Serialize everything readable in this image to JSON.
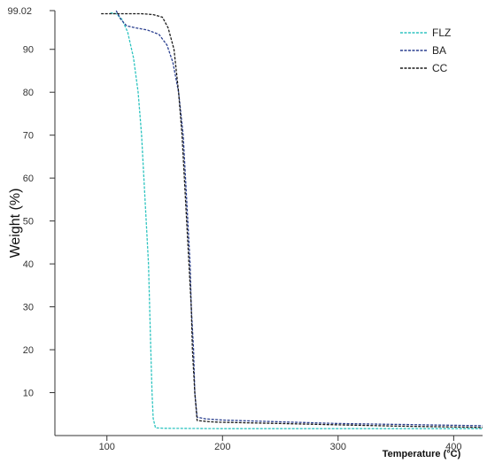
{
  "chart_data": {
    "type": "line",
    "title": "",
    "xlabel": "Temperature (°C)",
    "ylabel": "Weight (%)",
    "xlim": [
      55,
      425
    ],
    "ylim": [
      0,
      99.02
    ],
    "x_ticks": [
      100,
      200,
      300,
      400
    ],
    "y_ticks": [
      10,
      20,
      30,
      40,
      50,
      60,
      70,
      80,
      90
    ],
    "y_top_label": "99.02",
    "grid": false,
    "legend_position": "top-right",
    "series": [
      {
        "name": "FLZ",
        "color": "#2ec4c0",
        "dash": "dashed",
        "points": [
          [
            103,
            98.5
          ],
          [
            108,
            98.3
          ],
          [
            113,
            97
          ],
          [
            118,
            94
          ],
          [
            123,
            88
          ],
          [
            127,
            80
          ],
          [
            130,
            70
          ],
          [
            132,
            60
          ],
          [
            134,
            50
          ],
          [
            136,
            40
          ],
          [
            137,
            30
          ],
          [
            138,
            20
          ],
          [
            139,
            10
          ],
          [
            140,
            4
          ],
          [
            142,
            1.8
          ],
          [
            150,
            1.7
          ],
          [
            200,
            1.6
          ],
          [
            300,
            1.6
          ],
          [
            425,
            1.6
          ]
        ]
      },
      {
        "name": "BA",
        "color": "#2a3f8f",
        "dash": "dashed",
        "points": [
          [
            108,
            99.02
          ],
          [
            112,
            97
          ],
          [
            117,
            95.5
          ],
          [
            125,
            95
          ],
          [
            135,
            94.5
          ],
          [
            145,
            93.5
          ],
          [
            152,
            91
          ],
          [
            157,
            87
          ],
          [
            162,
            80
          ],
          [
            166,
            70
          ],
          [
            168,
            60
          ],
          [
            170,
            50
          ],
          [
            172,
            40
          ],
          [
            173,
            30
          ],
          [
            175,
            20
          ],
          [
            176,
            10
          ],
          [
            178,
            4.3
          ],
          [
            185,
            3.9
          ],
          [
            200,
            3.6
          ],
          [
            250,
            3.2
          ],
          [
            300,
            2.8
          ],
          [
            350,
            2.6
          ],
          [
            400,
            2.4
          ],
          [
            425,
            2.3
          ]
        ]
      },
      {
        "name": "CC",
        "color": "#1a1a1a",
        "dash": "dashed",
        "points": [
          [
            95,
            98.3
          ],
          [
            105,
            98.3
          ],
          [
            115,
            98.3
          ],
          [
            130,
            98.3
          ],
          [
            140,
            98.1
          ],
          [
            148,
            97.5
          ],
          [
            153,
            95
          ],
          [
            158,
            90
          ],
          [
            162,
            80
          ],
          [
            165,
            70
          ],
          [
            167,
            60
          ],
          [
            169,
            50
          ],
          [
            171,
            40
          ],
          [
            173,
            30
          ],
          [
            174,
            20
          ],
          [
            176,
            10
          ],
          [
            178,
            3.5
          ],
          [
            190,
            3.2
          ],
          [
            200,
            3.1
          ],
          [
            250,
            2.8
          ],
          [
            300,
            2.5
          ],
          [
            350,
            2.2
          ],
          [
            400,
            2.0
          ],
          [
            425,
            1.9
          ]
        ]
      }
    ]
  }
}
